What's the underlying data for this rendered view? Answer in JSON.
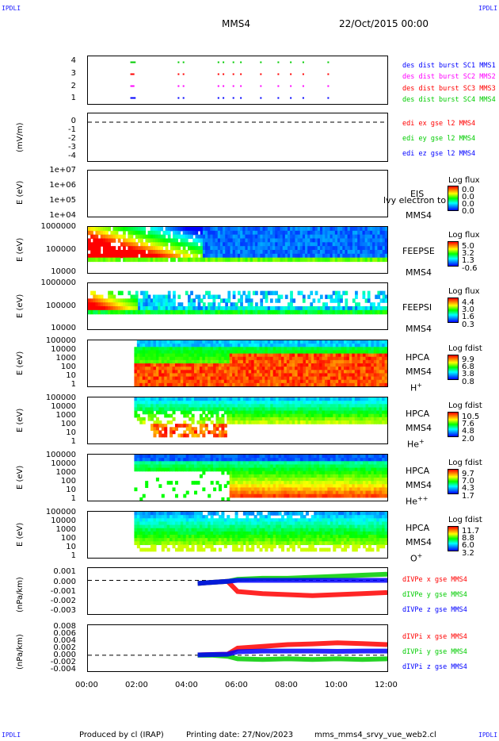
{
  "header": {
    "corner_tl": "IPDLI",
    "corner_tr": "IPDLI",
    "corner_bl": "IPDLI",
    "corner_br": "IPDLI",
    "spacecraft": "MMS4",
    "date": "22/Oct/2015 00:00"
  },
  "footer": {
    "produced": "Produced by cl (IRAP)",
    "printing": "Printing date: 27/Nov/2023",
    "script": "mms_mms4_srvy_vue_web2.cl"
  },
  "x_axis": {
    "ticks": [
      "00:00",
      "02:00",
      "04:00",
      "06:00",
      "08:00",
      "10:00",
      "12:00"
    ]
  },
  "colors": {
    "mms1": "#0000ff",
    "mms2": "#ff00ff",
    "mms3": "#ff0000",
    "mms4": "#00cc00",
    "x": "#ff0000",
    "y": "#00cc00",
    "z": "#0000ff"
  },
  "chart_data": [
    {
      "type": "scatter",
      "panel": "burst",
      "ylim": [
        0.5,
        4.5
      ],
      "yticks": [
        "4",
        "3",
        "2",
        "1"
      ],
      "ylabel": "",
      "series": [
        {
          "name": "des dist burst SC1 MMS1",
          "level": 1,
          "x_hours": [
            1.7,
            1.75,
            1.8,
            1.85,
            3.6,
            3.8,
            5.2,
            5.4,
            5.8,
            6.1,
            6.9,
            7.6,
            8.1,
            8.6,
            9.6
          ]
        },
        {
          "name": "des dist burst SC2 MMS2",
          "level": 2,
          "x_hours": [
            1.7,
            1.75,
            1.8,
            3.6,
            3.8,
            5.2,
            5.4,
            5.8,
            6.1,
            6.9,
            7.6,
            8.1,
            8.6,
            9.6
          ]
        },
        {
          "name": "des dist burst SC3 MMS3",
          "level": 3,
          "x_hours": [
            1.7,
            1.75,
            1.8,
            3.6,
            3.8,
            5.2,
            5.4,
            5.8,
            6.1,
            6.9,
            7.6,
            8.1,
            8.6,
            9.6
          ]
        },
        {
          "name": "des dist burst SC4 MMS4",
          "level": 4,
          "x_hours": [
            1.7,
            1.75,
            1.8,
            1.85,
            3.6,
            3.8,
            5.2,
            5.4,
            5.8,
            6.1,
            6.9,
            7.6,
            8.1,
            8.6,
            9.6
          ]
        }
      ]
    },
    {
      "type": "line",
      "panel": "edi",
      "ylabel": "(mV/m)",
      "yticks": [
        "0",
        "-1",
        "-2",
        "-3",
        "-4"
      ],
      "ylim": [
        -4,
        0.5
      ],
      "reference_line": 0,
      "series": [
        {
          "name": "edi ex gse l2 MMS4"
        },
        {
          "name": "edi ey gse l2 MMS4"
        },
        {
          "name": "edi ez gse l2 MMS4"
        }
      ]
    },
    {
      "type": "heatmap",
      "panel": "eis",
      "ylabel": "E (eV)",
      "scale": "log",
      "yticks": [
        "1e+07",
        "1e+06",
        "1e+05",
        "1e+04"
      ],
      "instrument": [
        "EIS",
        "MMS4"
      ],
      "overlay_text": "lvy electron to",
      "colorbar": {
        "title": "Log flux",
        "values": [
          "0.0",
          "0.0",
          "0.0",
          "0.0"
        ]
      }
    },
    {
      "type": "heatmap",
      "panel": "feepse",
      "ylabel": "E (eV)",
      "scale": "log",
      "yticks": [
        "1000000",
        "100000",
        "10000"
      ],
      "instrument": [
        "FEEPSE",
        "MMS4"
      ],
      "colorbar": {
        "title": "Log flux",
        "values": [
          "5.0",
          "3.2",
          "1.3",
          "-0.6"
        ]
      }
    },
    {
      "type": "heatmap",
      "panel": "feepsi",
      "ylabel": "E (eV)",
      "scale": "log",
      "yticks": [
        "1000000",
        "100000",
        "10000"
      ],
      "instrument": [
        "FEEPSI",
        "MMS4"
      ],
      "colorbar": {
        "title": "Log flux",
        "values": [
          "4.4",
          "3.0",
          "1.6",
          "0.3"
        ]
      }
    },
    {
      "type": "heatmap",
      "panel": "hpca_h",
      "ylabel": "E (eV)",
      "scale": "log",
      "yticks": [
        "100000",
        "10000",
        "1000",
        "100",
        "10",
        "1"
      ],
      "instrument": [
        "HPCA",
        "MMS4"
      ],
      "species": "H",
      "charge": "+",
      "colorbar": {
        "title": "Log fdist",
        "values": [
          "9.9",
          "6.8",
          "3.8",
          "0.8"
        ]
      }
    },
    {
      "type": "heatmap",
      "panel": "hpca_he",
      "ylabel": "E (eV)",
      "scale": "log",
      "yticks": [
        "100000",
        "10000",
        "1000",
        "100",
        "10",
        "1"
      ],
      "instrument": [
        "HPCA",
        "MMS4"
      ],
      "species": "He",
      "charge": "+",
      "colorbar": {
        "title": "Log fdist",
        "values": [
          "10.5",
          "7.6",
          "4.8",
          "2.0"
        ]
      }
    },
    {
      "type": "heatmap",
      "panel": "hpca_hepp",
      "ylabel": "E (eV)",
      "scale": "log",
      "yticks": [
        "100000",
        "10000",
        "1000",
        "100",
        "10",
        "1"
      ],
      "instrument": [
        "HPCA",
        "MMS4"
      ],
      "species": "He",
      "charge": "++",
      "colorbar": {
        "title": "Log fdist",
        "values": [
          "9.7",
          "7.0",
          "4.3",
          "1.7"
        ]
      }
    },
    {
      "type": "heatmap",
      "panel": "hpca_o",
      "ylabel": "E (eV)",
      "scale": "log",
      "yticks": [
        "100000",
        "10000",
        "1000",
        "100",
        "10",
        "1"
      ],
      "instrument": [
        "HPCA",
        "MMS4"
      ],
      "species": "O",
      "charge": "+",
      "colorbar": {
        "title": "Log fdist",
        "values": [
          "11.7",
          "8.8",
          "6.0",
          "3.2"
        ]
      }
    },
    {
      "type": "line",
      "panel": "divpe",
      "ylabel": "(nPa/km)",
      "yticks": [
        "0.001",
        "0.000",
        "-0.001",
        "-0.002",
        "-0.003"
      ],
      "ylim": [
        -0.0033,
        0.0012
      ],
      "reference_line": 0,
      "series": [
        {
          "name": "dIVPe x gse MMS4",
          "x_hours": [
            4.4,
            5.0,
            5.6,
            6.0,
            7.0,
            8.0,
            9.0,
            10.0,
            11.0,
            12.0
          ],
          "values": [
            -0.0003,
            -0.0002,
            -0.0001,
            -0.0011,
            -0.0013,
            -0.0014,
            -0.0015,
            -0.0014,
            -0.0013,
            -0.0012
          ]
        },
        {
          "name": "dIVPe y gse MMS4",
          "x_hours": [
            4.4,
            5.0,
            5.6,
            6.0,
            7.0,
            8.0,
            9.0,
            10.0,
            11.0,
            12.0
          ],
          "values": [
            -0.0003,
            -0.0002,
            -0.0001,
            0.0001,
            0.0002,
            0.0002,
            0.0003,
            0.0004,
            0.0005,
            0.0006
          ]
        },
        {
          "name": "dIVPe z gse MMS4",
          "x_hours": [
            4.4,
            5.0,
            5.6,
            6.0,
            7.0,
            8.0,
            9.0,
            10.0,
            11.0,
            12.0
          ],
          "values": [
            -0.0003,
            -0.0002,
            -0.0001,
            0.0,
            0.0,
            0.0,
            0.0,
            0.0,
            0.0,
            0.0
          ]
        }
      ]
    },
    {
      "type": "line",
      "panel": "divpi",
      "ylabel": "(nPa/km)",
      "yticks": [
        "0.008",
        "0.006",
        "0.004",
        "0.002",
        "0.000",
        "-0.002",
        "-0.004"
      ],
      "ylim": [
        -0.0045,
        0.0085
      ],
      "reference_line": 0,
      "series": [
        {
          "name": "dIVPi x gse MMS4",
          "x_hours": [
            4.4,
            5.0,
            5.6,
            6.0,
            7.0,
            8.0,
            9.0,
            10.0,
            11.0,
            12.0
          ],
          "values": [
            0.0001,
            0.0002,
            0.0003,
            0.002,
            0.0025,
            0.003,
            0.0032,
            0.0035,
            0.0033,
            0.003
          ]
        },
        {
          "name": "dIVPi y gse MMS4",
          "x_hours": [
            4.4,
            5.0,
            5.6,
            6.0,
            7.0,
            8.0,
            9.0,
            10.0,
            11.0,
            12.0
          ],
          "values": [
            0.0,
            0.0,
            -0.0003,
            -0.001,
            -0.0012,
            -0.001,
            -0.0012,
            -0.001,
            -0.0012,
            -0.001
          ]
        },
        {
          "name": "dIVPi z gse MMS4",
          "x_hours": [
            4.4,
            5.0,
            5.6,
            6.0,
            7.0,
            8.0,
            9.0,
            10.0,
            11.0,
            12.0
          ],
          "values": [
            0.0001,
            0.0002,
            0.0003,
            0.001,
            0.0012,
            0.0012,
            0.0012,
            0.0011,
            0.0012,
            0.0012
          ]
        }
      ]
    }
  ]
}
